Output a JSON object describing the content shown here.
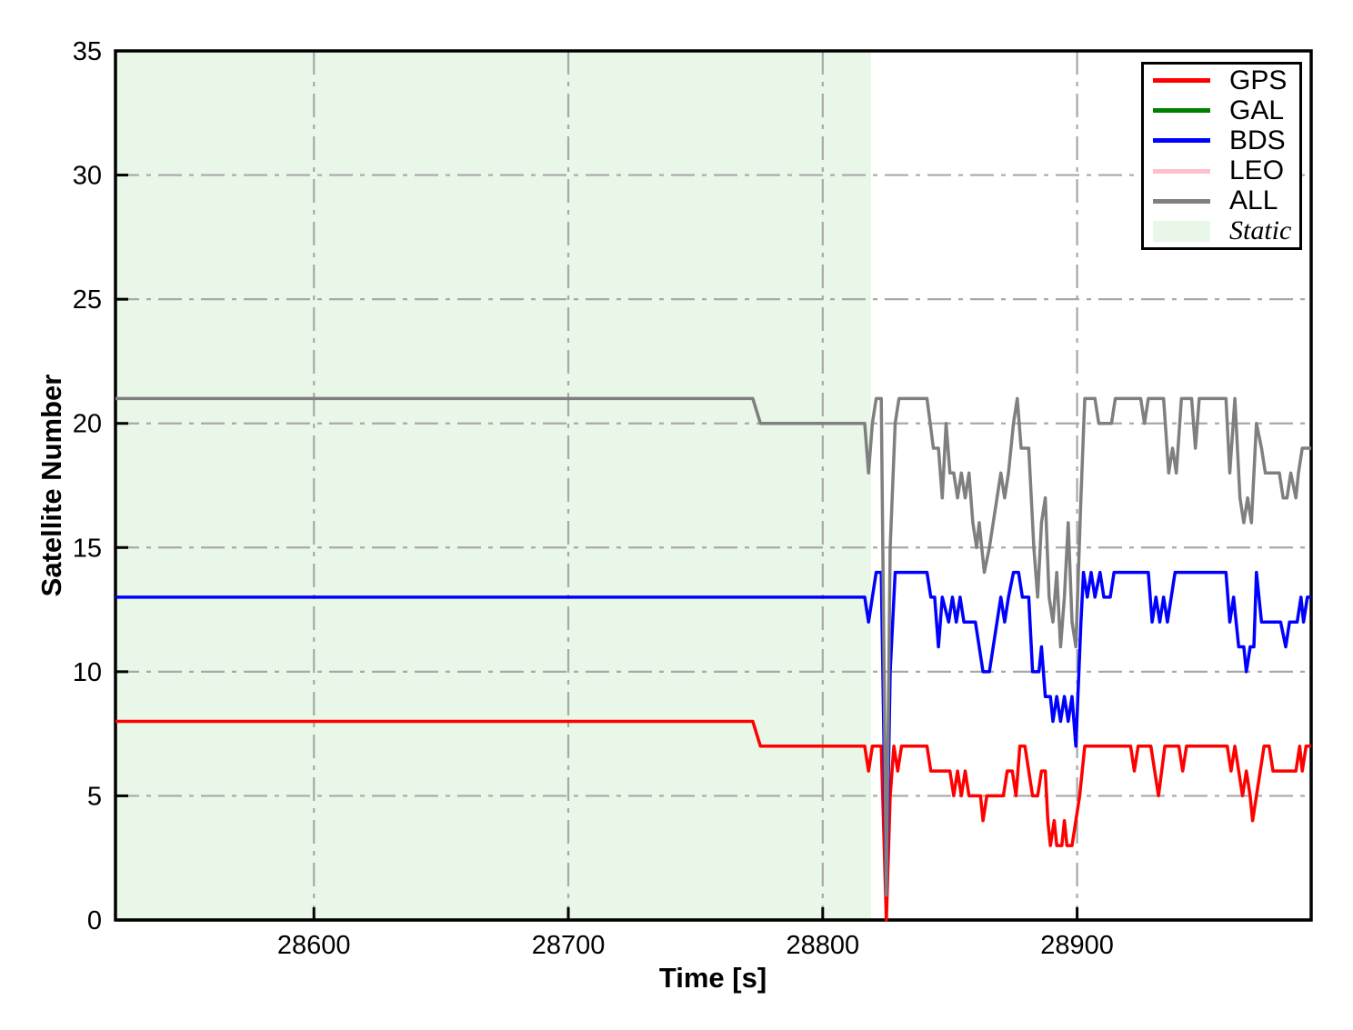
{
  "chart_data": {
    "type": "line",
    "xlabel": "Time [s]",
    "ylabel": "Satellite Number",
    "xlim": [
      28522,
      28992
    ],
    "ylim": [
      0,
      35
    ],
    "xticks": [
      28600,
      28700,
      28800,
      28900
    ],
    "yticks": [
      0,
      5,
      10,
      15,
      20,
      25,
      30,
      35
    ],
    "grid": {
      "color": "#a8a8a8",
      "style": "dashdot",
      "dasharray": "26 8 5 8"
    },
    "static_region": {
      "label": "Static",
      "x_start": 28522,
      "x_end": 28819,
      "color": "#e8f7e8"
    },
    "axis_color": "#000000",
    "legend": [
      {
        "label": "GPS",
        "color": "#ff0000",
        "type": "line"
      },
      {
        "label": "GAL",
        "color": "#008000",
        "type": "line"
      },
      {
        "label": "BDS",
        "color": "#0000ff",
        "type": "line"
      },
      {
        "label": "LEO",
        "color": "#ffc0cb",
        "type": "line"
      },
      {
        "label": "ALL",
        "color": "#7f7f7f",
        "type": "line"
      },
      {
        "label": "Static",
        "color": "#e8f7e8",
        "type": "patch"
      }
    ],
    "series": [
      {
        "name": "GPS",
        "color": "#ff0000",
        "behind_axis": false,
        "points": [
          [
            28522,
            8
          ],
          [
            28772.5,
            8
          ],
          [
            28775.5,
            7
          ],
          [
            28816.5,
            7
          ],
          [
            28818,
            6
          ],
          [
            28819.5,
            7
          ],
          [
            28823,
            7
          ],
          [
            28825,
            0
          ],
          [
            28826.5,
            5
          ],
          [
            28828,
            7
          ],
          [
            28829.5,
            6
          ],
          [
            28831,
            7
          ],
          [
            28841,
            7
          ],
          [
            28842.5,
            6
          ],
          [
            28850,
            6
          ],
          [
            28851.5,
            5
          ],
          [
            28853,
            6
          ],
          [
            28854.5,
            5
          ],
          [
            28856,
            6
          ],
          [
            28857.5,
            5
          ],
          [
            28862,
            5
          ],
          [
            28863,
            4
          ],
          [
            28864.5,
            5
          ],
          [
            28871,
            5
          ],
          [
            28872.5,
            6
          ],
          [
            28874.5,
            6
          ],
          [
            28876,
            5
          ],
          [
            28877.5,
            7
          ],
          [
            28879.5,
            7
          ],
          [
            28881,
            6
          ],
          [
            28882.5,
            5
          ],
          [
            28884.5,
            5
          ],
          [
            28886,
            6
          ],
          [
            28887.5,
            6
          ],
          [
            28888.5,
            4
          ],
          [
            28889.5,
            3
          ],
          [
            28891,
            4
          ],
          [
            28892,
            3
          ],
          [
            28894,
            3
          ],
          [
            28895,
            4
          ],
          [
            28896,
            3
          ],
          [
            28898,
            3
          ],
          [
            28899.5,
            4
          ],
          [
            28901,
            5
          ],
          [
            28903,
            7
          ],
          [
            28921,
            7
          ],
          [
            28922.5,
            6
          ],
          [
            28924,
            7
          ],
          [
            28929,
            7
          ],
          [
            28930.5,
            6
          ],
          [
            28932,
            5
          ],
          [
            28934.5,
            7
          ],
          [
            28940,
            7
          ],
          [
            28941.5,
            6
          ],
          [
            28943,
            7
          ],
          [
            28959,
            7
          ],
          [
            28960.5,
            6
          ],
          [
            28962,
            7
          ],
          [
            28963.5,
            6
          ],
          [
            28965,
            5
          ],
          [
            28966.5,
            6
          ],
          [
            28968,
            5
          ],
          [
            28969,
            4
          ],
          [
            28970.5,
            5
          ],
          [
            28972,
            6
          ],
          [
            28973.5,
            7
          ],
          [
            28975.5,
            7
          ],
          [
            28977,
            6
          ],
          [
            28986,
            6
          ],
          [
            28987.5,
            7
          ],
          [
            28988.5,
            6
          ],
          [
            28990,
            7
          ],
          [
            28992,
            7
          ]
        ]
      },
      {
        "name": "GAL",
        "color": "#008000",
        "behind_axis": true,
        "points": [
          [
            28522,
            0
          ],
          [
            28992,
            0
          ]
        ]
      },
      {
        "name": "BDS",
        "color": "#0000ff",
        "behind_axis": false,
        "points": [
          [
            28522,
            13
          ],
          [
            28816.5,
            13
          ],
          [
            28818,
            12
          ],
          [
            28819.5,
            13
          ],
          [
            28821,
            14
          ],
          [
            28823,
            14
          ],
          [
            28825,
            1
          ],
          [
            28826.5,
            10
          ],
          [
            28828.5,
            14
          ],
          [
            28841,
            14
          ],
          [
            28842.5,
            13
          ],
          [
            28844,
            13
          ],
          [
            28845.5,
            11
          ],
          [
            28847,
            13
          ],
          [
            28849.5,
            12
          ],
          [
            28851,
            13
          ],
          [
            28852.5,
            12
          ],
          [
            28854,
            13
          ],
          [
            28855.5,
            12
          ],
          [
            28860,
            12
          ],
          [
            28861.5,
            11
          ],
          [
            28863,
            10
          ],
          [
            28865.5,
            10
          ],
          [
            28867,
            11
          ],
          [
            28868.5,
            12
          ],
          [
            28870,
            13
          ],
          [
            28871.5,
            12
          ],
          [
            28873,
            13
          ],
          [
            28875,
            14
          ],
          [
            28877,
            14
          ],
          [
            28878.5,
            13
          ],
          [
            28881,
            13
          ],
          [
            28882.5,
            10
          ],
          [
            28885,
            10
          ],
          [
            28886,
            11
          ],
          [
            28887.5,
            9
          ],
          [
            28889.5,
            9
          ],
          [
            28890.5,
            8
          ],
          [
            28892,
            9
          ],
          [
            28893.5,
            8
          ],
          [
            28895,
            9
          ],
          [
            28896.5,
            8
          ],
          [
            28898,
            9
          ],
          [
            28899.5,
            7
          ],
          [
            28901.5,
            12
          ],
          [
            28902.5,
            14
          ],
          [
            28904,
            13
          ],
          [
            28905.5,
            14
          ],
          [
            28907,
            13
          ],
          [
            28909,
            14
          ],
          [
            28910.5,
            13
          ],
          [
            28913,
            13
          ],
          [
            28914.5,
            14
          ],
          [
            28928,
            14
          ],
          [
            28929.5,
            12
          ],
          [
            28931,
            13
          ],
          [
            28932.5,
            12
          ],
          [
            28934,
            13
          ],
          [
            28935.5,
            12
          ],
          [
            28937,
            13
          ],
          [
            28938.5,
            14
          ],
          [
            28958.5,
            14
          ],
          [
            28960,
            12
          ],
          [
            28961.5,
            13
          ],
          [
            28963.5,
            11
          ],
          [
            28965.5,
            11
          ],
          [
            28966.5,
            10
          ],
          [
            28968,
            11
          ],
          [
            28969.5,
            11
          ],
          [
            28970.5,
            14
          ],
          [
            28972.5,
            12
          ],
          [
            28980,
            12
          ],
          [
            28982,
            11
          ],
          [
            28983.5,
            12
          ],
          [
            28986.5,
            12
          ],
          [
            28988,
            13
          ],
          [
            28989,
            12
          ],
          [
            28990.5,
            13
          ],
          [
            28992,
            13
          ]
        ]
      },
      {
        "name": "LEO",
        "color": "#ffc0cb",
        "behind_axis": true,
        "points": [
          [
            28522,
            0
          ],
          [
            28992,
            0
          ]
        ]
      },
      {
        "name": "ALL",
        "color": "#7f7f7f",
        "behind_axis": false,
        "points": [
          [
            28522,
            21
          ],
          [
            28772.5,
            21
          ],
          [
            28775.5,
            20
          ],
          [
            28816.5,
            20
          ],
          [
            28818,
            18
          ],
          [
            28819.5,
            20
          ],
          [
            28821,
            21
          ],
          [
            28823,
            21
          ],
          [
            28825,
            1
          ],
          [
            28826.5,
            15
          ],
          [
            28828.5,
            20
          ],
          [
            28830,
            21
          ],
          [
            28841,
            21
          ],
          [
            28843.5,
            19
          ],
          [
            28845.5,
            19
          ],
          [
            28847,
            17
          ],
          [
            28848.5,
            20
          ],
          [
            28850,
            18
          ],
          [
            28851.5,
            18
          ],
          [
            28853,
            17
          ],
          [
            28854.5,
            18
          ],
          [
            28856,
            17
          ],
          [
            28857.5,
            18
          ],
          [
            28859,
            16
          ],
          [
            28860.5,
            15
          ],
          [
            28861.5,
            16
          ],
          [
            28863.5,
            14
          ],
          [
            28865.5,
            15
          ],
          [
            28867,
            16
          ],
          [
            28868.5,
            17
          ],
          [
            28870,
            18
          ],
          [
            28871.5,
            17
          ],
          [
            28873,
            18
          ],
          [
            28875,
            20
          ],
          [
            28876.5,
            21
          ],
          [
            28878,
            19
          ],
          [
            28881,
            19
          ],
          [
            28883,
            15
          ],
          [
            28884.5,
            13
          ],
          [
            28886,
            16
          ],
          [
            28887.5,
            17
          ],
          [
            28889,
            13
          ],
          [
            28890.5,
            12
          ],
          [
            28892,
            14
          ],
          [
            28893.5,
            11
          ],
          [
            28895,
            13
          ],
          [
            28896.5,
            16
          ],
          [
            28898,
            12
          ],
          [
            28899.5,
            11
          ],
          [
            28901.5,
            17
          ],
          [
            28903,
            21
          ],
          [
            28907,
            21
          ],
          [
            28908.5,
            20
          ],
          [
            28913.5,
            20
          ],
          [
            28915,
            21
          ],
          [
            28925,
            21
          ],
          [
            28926.5,
            20
          ],
          [
            28928,
            21
          ],
          [
            28934,
            21
          ],
          [
            28936,
            18
          ],
          [
            28937.5,
            19
          ],
          [
            28939,
            18
          ],
          [
            28941,
            21
          ],
          [
            28945,
            21
          ],
          [
            28946.5,
            19
          ],
          [
            28948,
            21
          ],
          [
            28958.5,
            21
          ],
          [
            28960,
            18
          ],
          [
            28962,
            21
          ],
          [
            28964,
            17
          ],
          [
            28965.5,
            16
          ],
          [
            28967,
            17
          ],
          [
            28968.5,
            16
          ],
          [
            28970.5,
            20
          ],
          [
            28972.5,
            19
          ],
          [
            28974,
            18
          ],
          [
            28979.5,
            18
          ],
          [
            28981,
            17
          ],
          [
            28982.5,
            17
          ],
          [
            28984,
            18
          ],
          [
            28986,
            17
          ],
          [
            28987,
            18
          ],
          [
            28988.5,
            19
          ],
          [
            28992,
            19
          ]
        ]
      }
    ]
  }
}
